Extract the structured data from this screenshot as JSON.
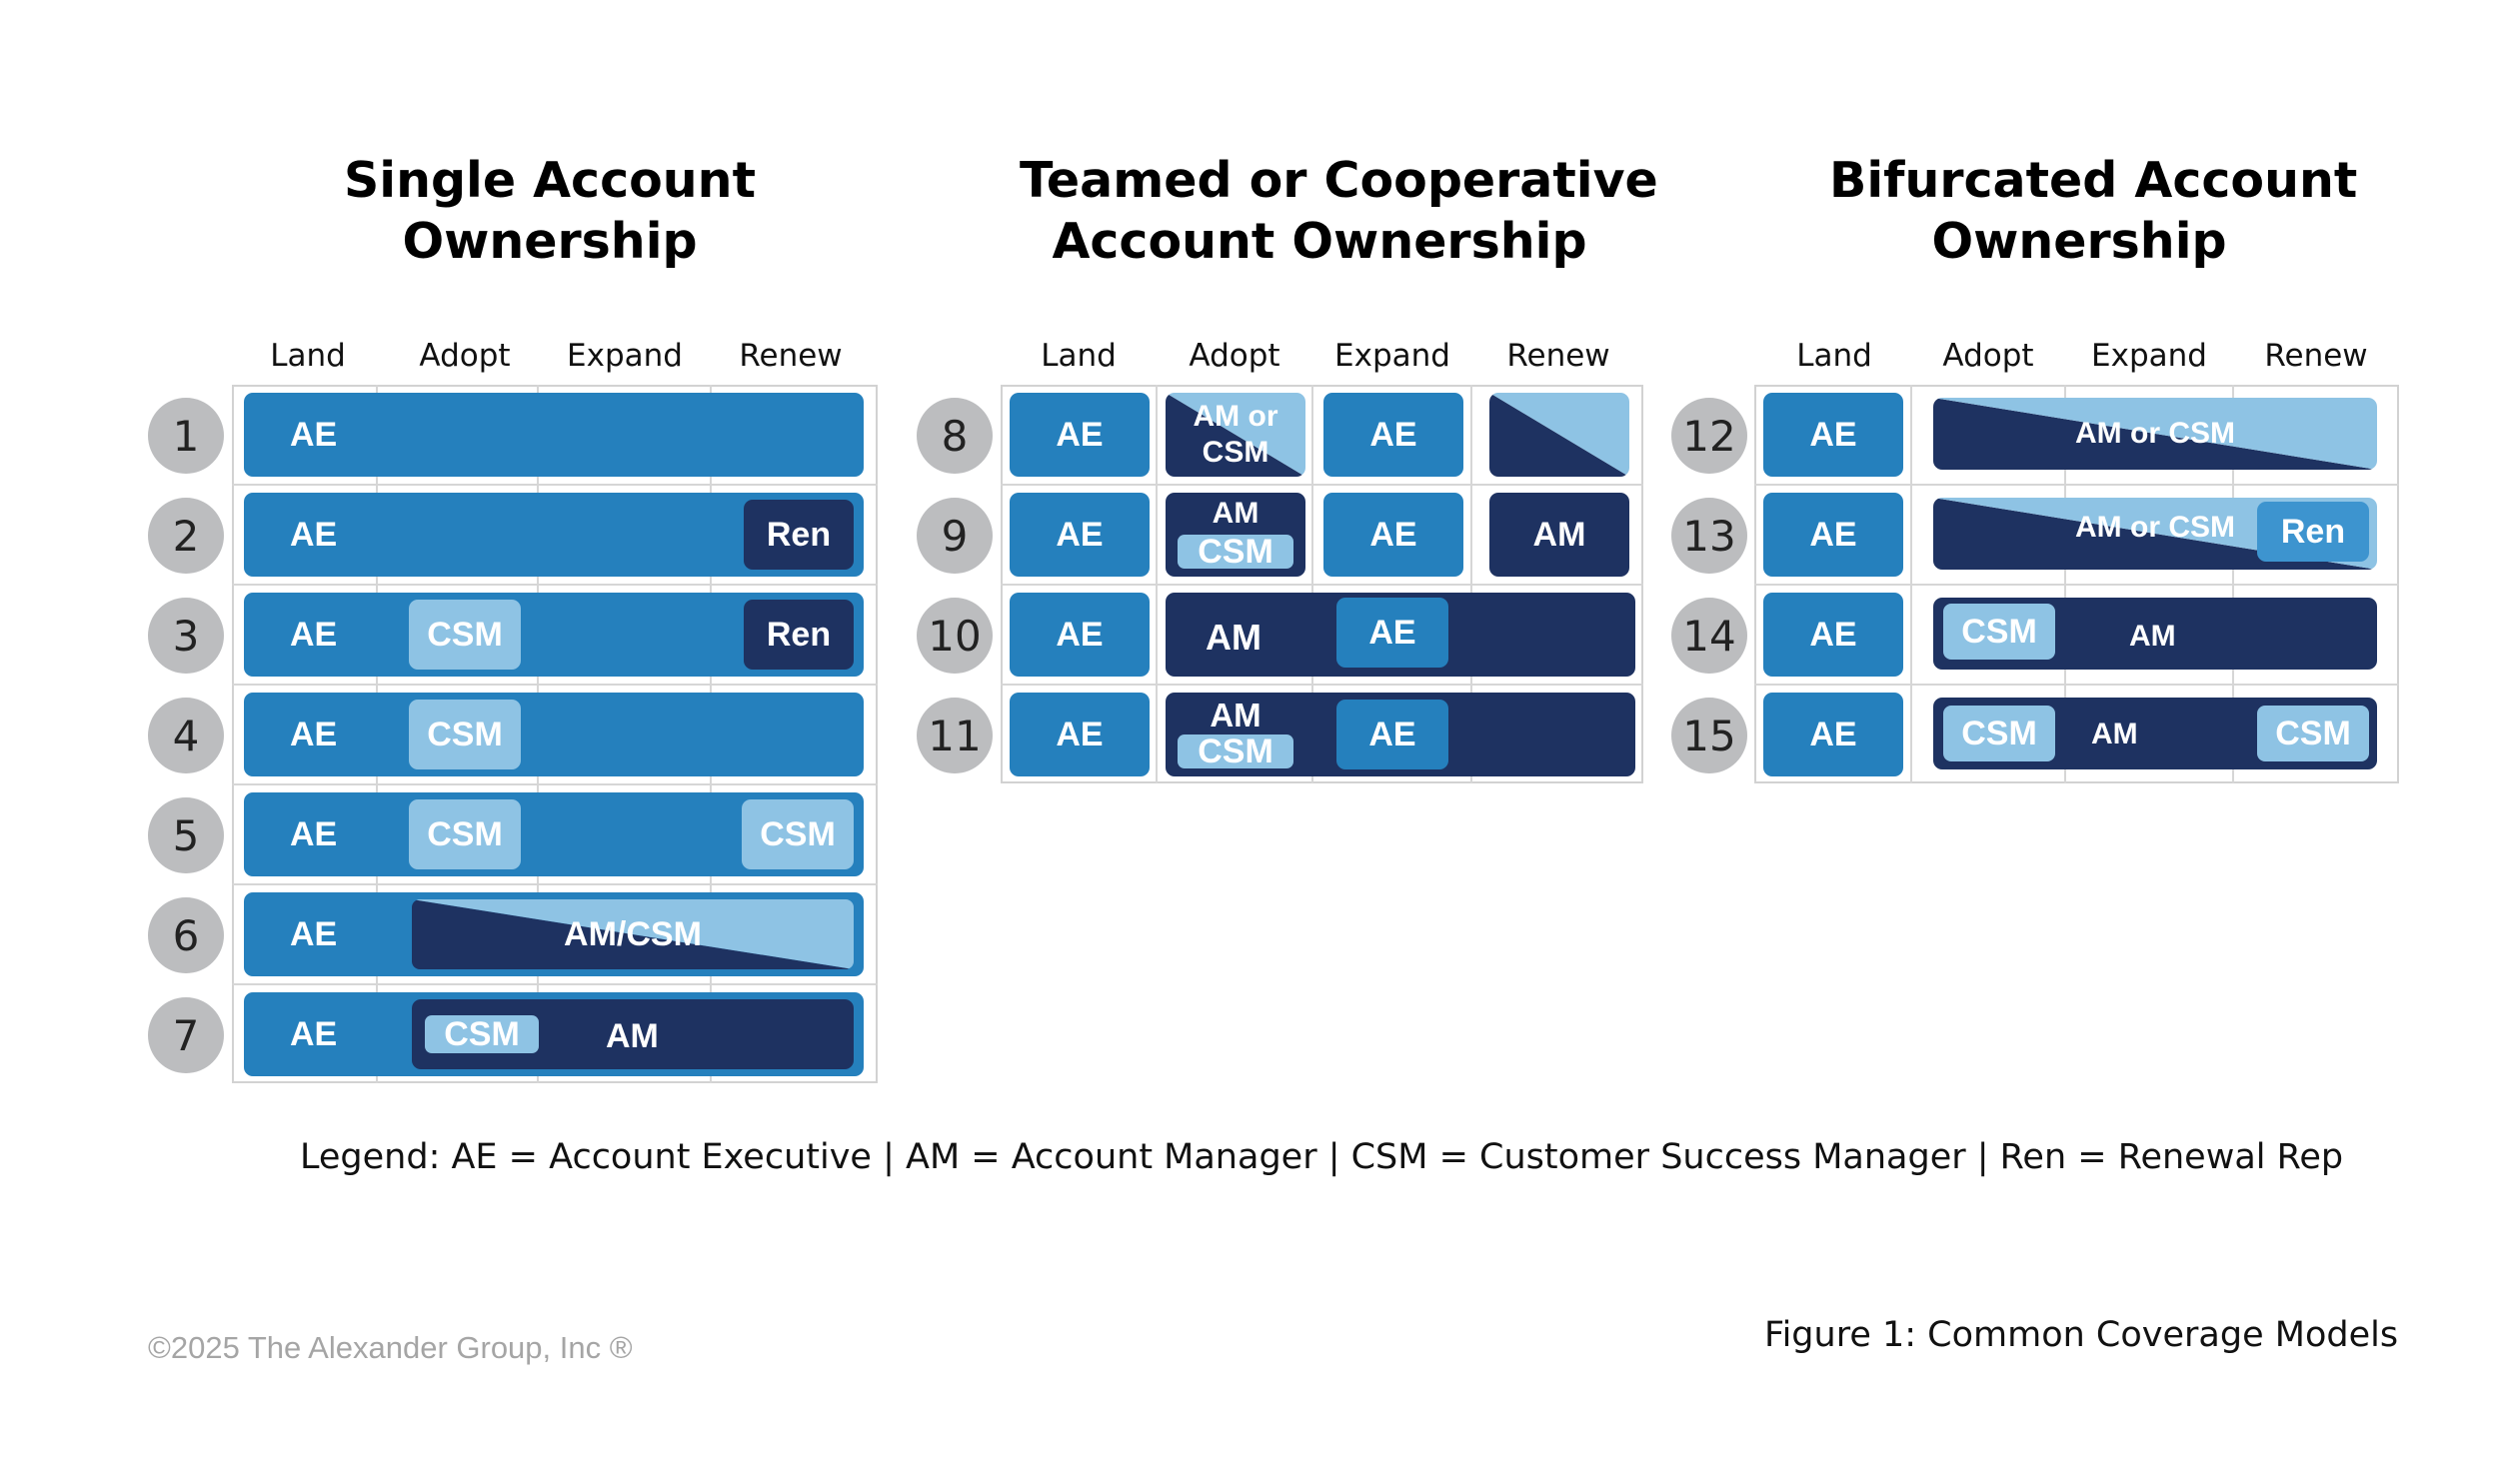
{
  "panels": [
    {
      "title_line1": "Single Account",
      "title_line2": "Ownership"
    },
    {
      "title_line1": "Teamed or Cooperative",
      "title_line2": "Account Ownership"
    },
    {
      "title_line1": "Bifurcated Account",
      "title_line2": "Ownership"
    }
  ],
  "columns": [
    "Land",
    "Adopt",
    "Expand",
    "Renew"
  ],
  "rows": [
    "1",
    "2",
    "3",
    "4",
    "5",
    "6",
    "7",
    "8",
    "9",
    "10",
    "11",
    "12",
    "13",
    "14",
    "15"
  ],
  "roles": {
    "ae": "AE",
    "ren": "Ren",
    "csm": "CSM",
    "am": "AM",
    "am_csm": "AM/CSM",
    "am_or_csm": "AM or CSM",
    "am_or": "AM or",
    "csm_word": "CSM"
  },
  "colors": {
    "ae_blue": "#2580bd",
    "navy": "#1e3261",
    "light_blue": "#8ec3e4",
    "number_circle": "#bcbdbf"
  },
  "legend": "Legend: AE = Account Executive | AM = Account Manager | CSM = Customer Success Manager | Ren = Renewal Rep",
  "copyright": "©2025 The Alexander Group, Inc ®",
  "figure_caption": "Figure 1: Common Coverage Models"
}
